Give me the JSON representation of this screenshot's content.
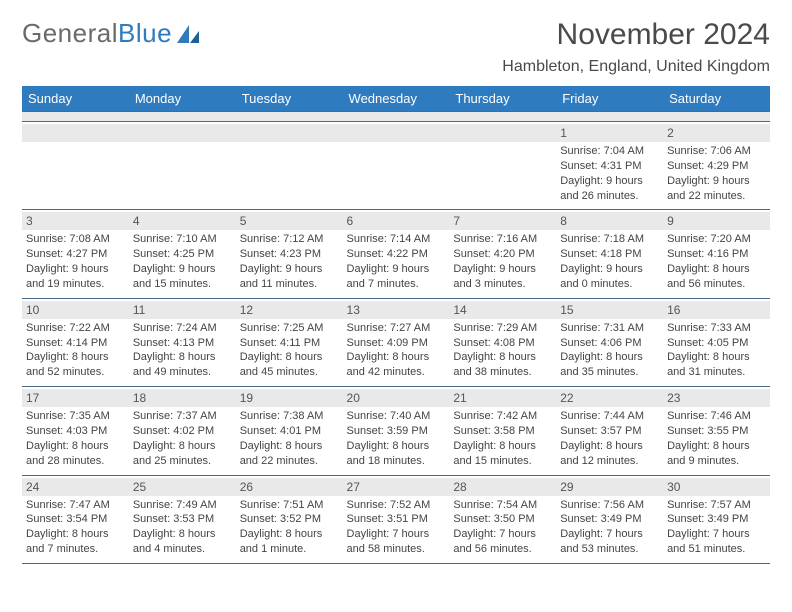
{
  "logo": {
    "text_gray": "General",
    "text_blue": "Blue"
  },
  "title": "November 2024",
  "location": "Hambleton, England, United Kingdom",
  "colors": {
    "header_bg": "#2f7bbf",
    "header_fg": "#ffffff",
    "daynum_bg": "#e9e9e9",
    "rule": "#4a6a8a",
    "text": "#444444",
    "title_text": "#4a4a4a",
    "logo_gray": "#6a6a6a"
  },
  "font": {
    "family": "Arial",
    "daynum_size": 12,
    "info_size": 11,
    "title_size": 30,
    "location_size": 16,
    "header_size": 13
  },
  "daysOfWeek": [
    "Sunday",
    "Monday",
    "Tuesday",
    "Wednesday",
    "Thursday",
    "Friday",
    "Saturday"
  ],
  "weeks": [
    [
      null,
      null,
      null,
      null,
      null,
      {
        "n": "1",
        "sunrise": "Sunrise: 7:04 AM",
        "sunset": "Sunset: 4:31 PM",
        "daylight1": "Daylight: 9 hours",
        "daylight2": "and 26 minutes."
      },
      {
        "n": "2",
        "sunrise": "Sunrise: 7:06 AM",
        "sunset": "Sunset: 4:29 PM",
        "daylight1": "Daylight: 9 hours",
        "daylight2": "and 22 minutes."
      }
    ],
    [
      {
        "n": "3",
        "sunrise": "Sunrise: 7:08 AM",
        "sunset": "Sunset: 4:27 PM",
        "daylight1": "Daylight: 9 hours",
        "daylight2": "and 19 minutes."
      },
      {
        "n": "4",
        "sunrise": "Sunrise: 7:10 AM",
        "sunset": "Sunset: 4:25 PM",
        "daylight1": "Daylight: 9 hours",
        "daylight2": "and 15 minutes."
      },
      {
        "n": "5",
        "sunrise": "Sunrise: 7:12 AM",
        "sunset": "Sunset: 4:23 PM",
        "daylight1": "Daylight: 9 hours",
        "daylight2": "and 11 minutes."
      },
      {
        "n": "6",
        "sunrise": "Sunrise: 7:14 AM",
        "sunset": "Sunset: 4:22 PM",
        "daylight1": "Daylight: 9 hours",
        "daylight2": "and 7 minutes."
      },
      {
        "n": "7",
        "sunrise": "Sunrise: 7:16 AM",
        "sunset": "Sunset: 4:20 PM",
        "daylight1": "Daylight: 9 hours",
        "daylight2": "and 3 minutes."
      },
      {
        "n": "8",
        "sunrise": "Sunrise: 7:18 AM",
        "sunset": "Sunset: 4:18 PM",
        "daylight1": "Daylight: 9 hours",
        "daylight2": "and 0 minutes."
      },
      {
        "n": "9",
        "sunrise": "Sunrise: 7:20 AM",
        "sunset": "Sunset: 4:16 PM",
        "daylight1": "Daylight: 8 hours",
        "daylight2": "and 56 minutes."
      }
    ],
    [
      {
        "n": "10",
        "sunrise": "Sunrise: 7:22 AM",
        "sunset": "Sunset: 4:14 PM",
        "daylight1": "Daylight: 8 hours",
        "daylight2": "and 52 minutes."
      },
      {
        "n": "11",
        "sunrise": "Sunrise: 7:24 AM",
        "sunset": "Sunset: 4:13 PM",
        "daylight1": "Daylight: 8 hours",
        "daylight2": "and 49 minutes."
      },
      {
        "n": "12",
        "sunrise": "Sunrise: 7:25 AM",
        "sunset": "Sunset: 4:11 PM",
        "daylight1": "Daylight: 8 hours",
        "daylight2": "and 45 minutes."
      },
      {
        "n": "13",
        "sunrise": "Sunrise: 7:27 AM",
        "sunset": "Sunset: 4:09 PM",
        "daylight1": "Daylight: 8 hours",
        "daylight2": "and 42 minutes."
      },
      {
        "n": "14",
        "sunrise": "Sunrise: 7:29 AM",
        "sunset": "Sunset: 4:08 PM",
        "daylight1": "Daylight: 8 hours",
        "daylight2": "and 38 minutes."
      },
      {
        "n": "15",
        "sunrise": "Sunrise: 7:31 AM",
        "sunset": "Sunset: 4:06 PM",
        "daylight1": "Daylight: 8 hours",
        "daylight2": "and 35 minutes."
      },
      {
        "n": "16",
        "sunrise": "Sunrise: 7:33 AM",
        "sunset": "Sunset: 4:05 PM",
        "daylight1": "Daylight: 8 hours",
        "daylight2": "and 31 minutes."
      }
    ],
    [
      {
        "n": "17",
        "sunrise": "Sunrise: 7:35 AM",
        "sunset": "Sunset: 4:03 PM",
        "daylight1": "Daylight: 8 hours",
        "daylight2": "and 28 minutes."
      },
      {
        "n": "18",
        "sunrise": "Sunrise: 7:37 AM",
        "sunset": "Sunset: 4:02 PM",
        "daylight1": "Daylight: 8 hours",
        "daylight2": "and 25 minutes."
      },
      {
        "n": "19",
        "sunrise": "Sunrise: 7:38 AM",
        "sunset": "Sunset: 4:01 PM",
        "daylight1": "Daylight: 8 hours",
        "daylight2": "and 22 minutes."
      },
      {
        "n": "20",
        "sunrise": "Sunrise: 7:40 AM",
        "sunset": "Sunset: 3:59 PM",
        "daylight1": "Daylight: 8 hours",
        "daylight2": "and 18 minutes."
      },
      {
        "n": "21",
        "sunrise": "Sunrise: 7:42 AM",
        "sunset": "Sunset: 3:58 PM",
        "daylight1": "Daylight: 8 hours",
        "daylight2": "and 15 minutes."
      },
      {
        "n": "22",
        "sunrise": "Sunrise: 7:44 AM",
        "sunset": "Sunset: 3:57 PM",
        "daylight1": "Daylight: 8 hours",
        "daylight2": "and 12 minutes."
      },
      {
        "n": "23",
        "sunrise": "Sunrise: 7:46 AM",
        "sunset": "Sunset: 3:55 PM",
        "daylight1": "Daylight: 8 hours",
        "daylight2": "and 9 minutes."
      }
    ],
    [
      {
        "n": "24",
        "sunrise": "Sunrise: 7:47 AM",
        "sunset": "Sunset: 3:54 PM",
        "daylight1": "Daylight: 8 hours",
        "daylight2": "and 7 minutes."
      },
      {
        "n": "25",
        "sunrise": "Sunrise: 7:49 AM",
        "sunset": "Sunset: 3:53 PM",
        "daylight1": "Daylight: 8 hours",
        "daylight2": "and 4 minutes."
      },
      {
        "n": "26",
        "sunrise": "Sunrise: 7:51 AM",
        "sunset": "Sunset: 3:52 PM",
        "daylight1": "Daylight: 8 hours",
        "daylight2": "and 1 minute."
      },
      {
        "n": "27",
        "sunrise": "Sunrise: 7:52 AM",
        "sunset": "Sunset: 3:51 PM",
        "daylight1": "Daylight: 7 hours",
        "daylight2": "and 58 minutes."
      },
      {
        "n": "28",
        "sunrise": "Sunrise: 7:54 AM",
        "sunset": "Sunset: 3:50 PM",
        "daylight1": "Daylight: 7 hours",
        "daylight2": "and 56 minutes."
      },
      {
        "n": "29",
        "sunrise": "Sunrise: 7:56 AM",
        "sunset": "Sunset: 3:49 PM",
        "daylight1": "Daylight: 7 hours",
        "daylight2": "and 53 minutes."
      },
      {
        "n": "30",
        "sunrise": "Sunrise: 7:57 AM",
        "sunset": "Sunset: 3:49 PM",
        "daylight1": "Daylight: 7 hours",
        "daylight2": "and 51 minutes."
      }
    ]
  ]
}
